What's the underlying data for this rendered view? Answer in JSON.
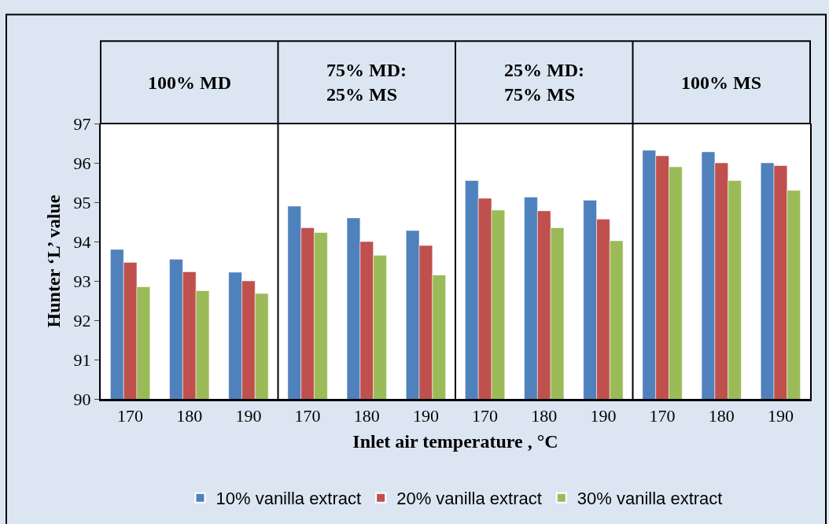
{
  "chart_data": {
    "type": "bar",
    "xlabel": "Inlet air temperature , °C",
    "ylabel": "Hunter ‘L’ value",
    "categories": [
      "170",
      "180",
      "190",
      "170",
      "180",
      "190",
      "170",
      "180",
      "190",
      "170",
      "180",
      "190"
    ],
    "annotations": [
      "100% MD",
      "75% MD:\n25% MS",
      "25% MD:\n75% MS",
      "100% MS"
    ],
    "series": [
      {
        "name": "10% vanilla extract",
        "color": "#4f81bd",
        "values": [
          93.8,
          93.55,
          93.22,
          94.9,
          94.6,
          94.28,
          95.55,
          95.13,
          95.05,
          96.32,
          96.28,
          96.0
        ]
      },
      {
        "name": "20% vanilla extract",
        "color": "#c0504d",
        "values": [
          93.47,
          93.23,
          93.0,
          94.35,
          94.0,
          93.9,
          95.1,
          94.78,
          94.57,
          96.18,
          96.0,
          95.93
        ]
      },
      {
        "name": "30% vanilla extract",
        "color": "#9bbb59",
        "values": [
          92.85,
          92.75,
          92.68,
          94.23,
          93.65,
          93.15,
          94.8,
          94.35,
          94.02,
          95.9,
          95.55,
          95.3
        ]
      }
    ],
    "ylim": [
      90,
      97
    ],
    "yticks": [
      90,
      91,
      92,
      93,
      94,
      95,
      96,
      97
    ],
    "legend": "bottom"
  }
}
